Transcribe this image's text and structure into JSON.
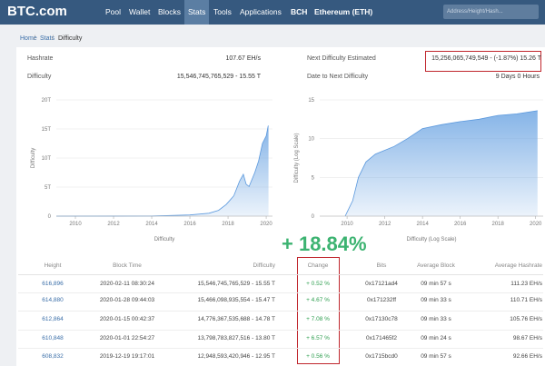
{
  "nav": {
    "logo": "BTC.com",
    "items": [
      "Pool",
      "Wallet",
      "Blocks",
      "Stats",
      "Tools",
      "Applications",
      "BCH",
      "Ethereum (ETH)"
    ],
    "search_placeholder": "Address/Height/Hash..."
  },
  "breadcrumb": [
    "Home",
    "Stats",
    "Difficulty"
  ],
  "stats": [
    {
      "label": "Hashrate",
      "value": "107.67 EH/s"
    },
    {
      "label": "Difficulty",
      "value": "15,546,745,765,529 - 15.55 T"
    },
    {
      "label": "Next Difficulty Estimated",
      "value": "15,256,065,749,549 - (-1.87%) 15.26 T"
    },
    {
      "label": "Date to Next Difficulty",
      "value": "9 Days 0 Hours"
    }
  ],
  "charts": [
    {
      "type": "area",
      "x_label": "Difficulty",
      "y_label": "Difficulty",
      "color": "#7fb0e6",
      "xlim": [
        2009,
        2020.33
      ],
      "ylim": [
        0,
        20
      ],
      "xticks": [
        2010,
        2012,
        2014,
        2016,
        2018,
        2020
      ],
      "yticks": [
        0,
        {
          "value": 5,
          "label": "5T"
        },
        {
          "value": 10,
          "label": "10T"
        },
        {
          "value": 15,
          "label": "15T"
        },
        {
          "value": 20,
          "label": "20T"
        }
      ],
      "x": [
        2009,
        2014,
        2016,
        2017,
        2017.5,
        2017.9,
        2018.3,
        2018.6,
        2018.8,
        2018.95,
        2019.1,
        2019.4,
        2019.6,
        2019.8,
        2020,
        2020.1,
        2020.12
      ],
      "values": [
        0,
        0.01,
        0.2,
        0.5,
        1,
        2,
        3.5,
        6,
        7.2,
        5.5,
        5.1,
        7.5,
        9.5,
        12.5,
        13.8,
        15.5,
        15.55
      ]
    },
    {
      "type": "area",
      "x_label": "Difficulty (Log Scale)",
      "y_label": "Difficulty (Log Scale)",
      "color": "#7fb0e6",
      "xlim": [
        2008.55,
        2020.4
      ],
      "ylim": [
        0,
        15
      ],
      "xticks": [
        2010,
        2012,
        2014,
        2016,
        2018,
        2020
      ],
      "yticks": [
        0,
        5,
        10,
        15
      ],
      "x": [
        2009.9,
        2010.3,
        2010.6,
        2011,
        2011.5,
        2012.5,
        2013.2,
        2014,
        2015,
        2016,
        2017,
        2018,
        2019,
        2020.1
      ],
      "values": [
        0,
        2,
        5,
        7,
        8,
        9,
        10,
        11.3,
        11.8,
        12.2,
        12.5,
        13,
        13.2,
        13.6
      ]
    }
  ],
  "annotation": "+ 18.84%",
  "table": {
    "columns": [
      "Height",
      "Block Time",
      "Difficulty",
      "Change",
      "Bits",
      "Average Block",
      "Average Hashrate"
    ],
    "rows": [
      [
        "616,896",
        "2020-02-11 08:30:24",
        "15,546,745,765,529 - 15.55 T",
        "+ 0.52 %",
        "0x17121ad4",
        "09 min 57 s",
        "111.23 EH/s"
      ],
      [
        "614,880",
        "2020-01-28 09:44:03",
        "15,466,098,935,554 - 15.47 T",
        "+ 4.67 %",
        "0x171232ff",
        "09 min 33 s",
        "110.71 EH/s"
      ],
      [
        "612,864",
        "2020-01-15 00:42:37",
        "14,776,367,535,688 - 14.78 T",
        "+ 7.08 %",
        "0x17130c78",
        "09 min 33 s",
        "105.76 EH/s"
      ],
      [
        "610,848",
        "2020-01-01 22:54:27",
        "13,798,783,827,516 - 13.80 T",
        "+ 6.57 %",
        "0x171465f2",
        "09 min 24 s",
        "98.67 EH/s"
      ],
      [
        "608,832",
        "2019-12-19 19:17:01",
        "12,948,593,420,946 - 12.95 T",
        "+ 0.56 %",
        "0x1715bcd0",
        "09 min 57 s",
        "92.66 EH/s"
      ]
    ]
  }
}
